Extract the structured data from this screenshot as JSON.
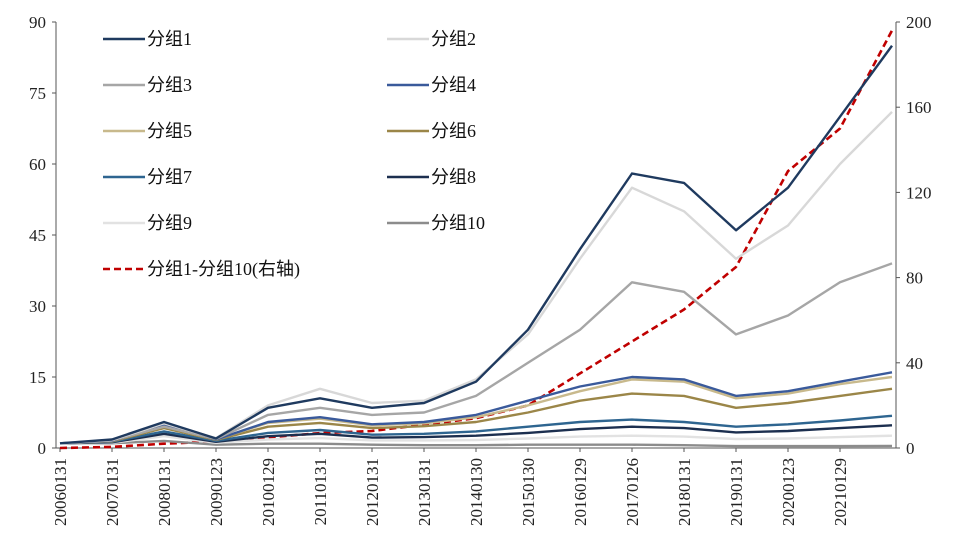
{
  "chart_data": {
    "type": "line",
    "title": "",
    "xlabel": "",
    "ylabel": "",
    "ylabel_right": "",
    "grid": false,
    "legend_placement": "top-left",
    "ylim_left": [
      0,
      90
    ],
    "yticks_left": [
      "0",
      "15",
      "30",
      "45",
      "60",
      "75",
      "90"
    ],
    "ylim_right": [
      0,
      200
    ],
    "yticks_right": [
      "0",
      "40",
      "80",
      "120",
      "160",
      "200"
    ],
    "x": [
      "20060131",
      "20070131",
      "20080131",
      "20090123",
      "20100129",
      "20110131",
      "20120131",
      "20130131",
      "20140130",
      "20150130",
      "20160129",
      "20170126",
      "20180131",
      "20190131",
      "20200123",
      "20210129",
      "20211231"
    ],
    "xticks": [
      "20060131",
      "20070131",
      "20080131",
      "20090123",
      "20100129",
      "20110131",
      "20120131",
      "20130131",
      "20140130",
      "20150130",
      "20160129",
      "20170126",
      "20180131",
      "20190131",
      "20200123",
      "20210129"
    ],
    "series": [
      {
        "name": "分组1",
        "axis": "left",
        "color": "#1f3a5f",
        "dash": "solid",
        "values": [
          1,
          1.8,
          5.5,
          2,
          8.5,
          10.5,
          8.5,
          9.5,
          14,
          25,
          42,
          58,
          56,
          46,
          55,
          70,
          85
        ]
      },
      {
        "name": "分组2",
        "axis": "left",
        "color": "#d8d8d8",
        "dash": "solid",
        "values": [
          1,
          1.7,
          5.2,
          2.1,
          9,
          12.5,
          9.5,
          10,
          14.5,
          24,
          40,
          55,
          50,
          40,
          47,
          60,
          71
        ]
      },
      {
        "name": "分组3",
        "axis": "left",
        "color": "#a6a6a6",
        "dash": "solid",
        "values": [
          1,
          1.6,
          4.5,
          1.9,
          7,
          8.5,
          7,
          7.5,
          11,
          18,
          25,
          35,
          33,
          24,
          28,
          35,
          39
        ]
      },
      {
        "name": "分组4",
        "axis": "left",
        "color": "#3a5a9b",
        "dash": "solid",
        "values": [
          1,
          1.5,
          4.8,
          1.8,
          5.5,
          6.5,
          5,
          5.5,
          7,
          10,
          13,
          15,
          14.5,
          11,
          12,
          14,
          16
        ]
      },
      {
        "name": "分组5",
        "axis": "left",
        "color": "#c8b98c",
        "dash": "solid",
        "values": [
          1,
          1.5,
          4.6,
          1.8,
          5.3,
          6.2,
          4.8,
          5.2,
          6.5,
          9,
          12,
          14.5,
          14,
          10.5,
          11.5,
          13.5,
          15
        ]
      },
      {
        "name": "分组6",
        "axis": "left",
        "color": "#9b8648",
        "dash": "solid",
        "values": [
          1,
          1.4,
          4.2,
          1.7,
          4.5,
          5.3,
          4.2,
          4.6,
          5.5,
          7.5,
          10,
          11.5,
          11,
          8.5,
          9.5,
          11,
          12.5
        ]
      },
      {
        "name": "分组7",
        "axis": "left",
        "color": "#2e6590",
        "dash": "solid",
        "values": [
          1,
          1.3,
          3.5,
          1.5,
          3.2,
          3.8,
          2.8,
          3,
          3.5,
          4.5,
          5.5,
          6,
          5.5,
          4.5,
          5,
          5.8,
          6.8
        ]
      },
      {
        "name": "分组8",
        "axis": "left",
        "color": "#1c2f4f",
        "dash": "solid",
        "values": [
          1,
          1.2,
          3,
          1.3,
          2.5,
          3,
          2.2,
          2.3,
          2.6,
          3.2,
          4,
          4.5,
          4.2,
          3.3,
          3.6,
          4.2,
          4.8
        ]
      },
      {
        "name": "分组9",
        "axis": "left",
        "color": "#e2e2e2",
        "dash": "solid",
        "values": [
          1,
          1.1,
          2.5,
          1.1,
          1.8,
          2.1,
          1.6,
          1.6,
          1.7,
          2,
          2.4,
          2.6,
          2.4,
          1.9,
          2,
          2.3,
          2.6
        ]
      },
      {
        "name": "分组10",
        "axis": "left",
        "color": "#8c8c8c",
        "dash": "solid",
        "values": [
          1,
          1,
          1.5,
          0.7,
          0.9,
          0.9,
          0.7,
          0.6,
          0.6,
          0.7,
          0.7,
          0.7,
          0.6,
          0.4,
          0.4,
          0.4,
          0.45
        ]
      },
      {
        "name": "分组1-分组10(右轴)",
        "axis": "right",
        "color": "#c00000",
        "dash": "dashed",
        "values": [
          0,
          0.5,
          2,
          3,
          5,
          7,
          8,
          11,
          14,
          20,
          35,
          50,
          65,
          85,
          130,
          150,
          196
        ]
      }
    ]
  }
}
